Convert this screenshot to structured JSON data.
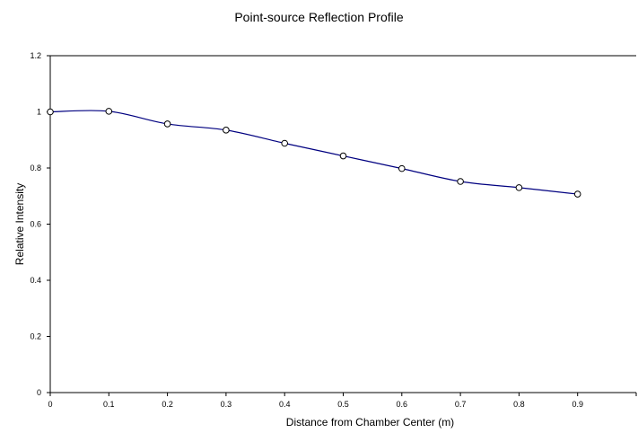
{
  "chart_data": {
    "type": "line",
    "title": "Point-source Reflection Profile",
    "xlabel": "Distance from Chamber Center (m)",
    "ylabel": "Relative Intensity",
    "xlim": [
      0,
      1.0
    ],
    "ylim": [
      0,
      1.2
    ],
    "x_ticks": [
      "0",
      "0.1",
      "0.2",
      "0.3",
      "0.4",
      "0.5",
      "0.6",
      "0.7",
      "0.8",
      "0.9"
    ],
    "y_ticks": [
      "0",
      "0.2",
      "0.4",
      "0.6",
      "0.8",
      "1",
      "1.2"
    ],
    "grid": false,
    "legend": "none",
    "series": [
      {
        "x": [
          0,
          0.1,
          0.2,
          0.3,
          0.4,
          0.5,
          0.6,
          0.7,
          0.8,
          0.9
        ],
        "y": [
          1.0,
          1.002,
          0.957,
          0.935,
          0.888,
          0.843,
          0.798,
          0.752,
          0.73,
          0.707
        ],
        "line_color": "#000080",
        "marker": "open-circle"
      }
    ]
  }
}
